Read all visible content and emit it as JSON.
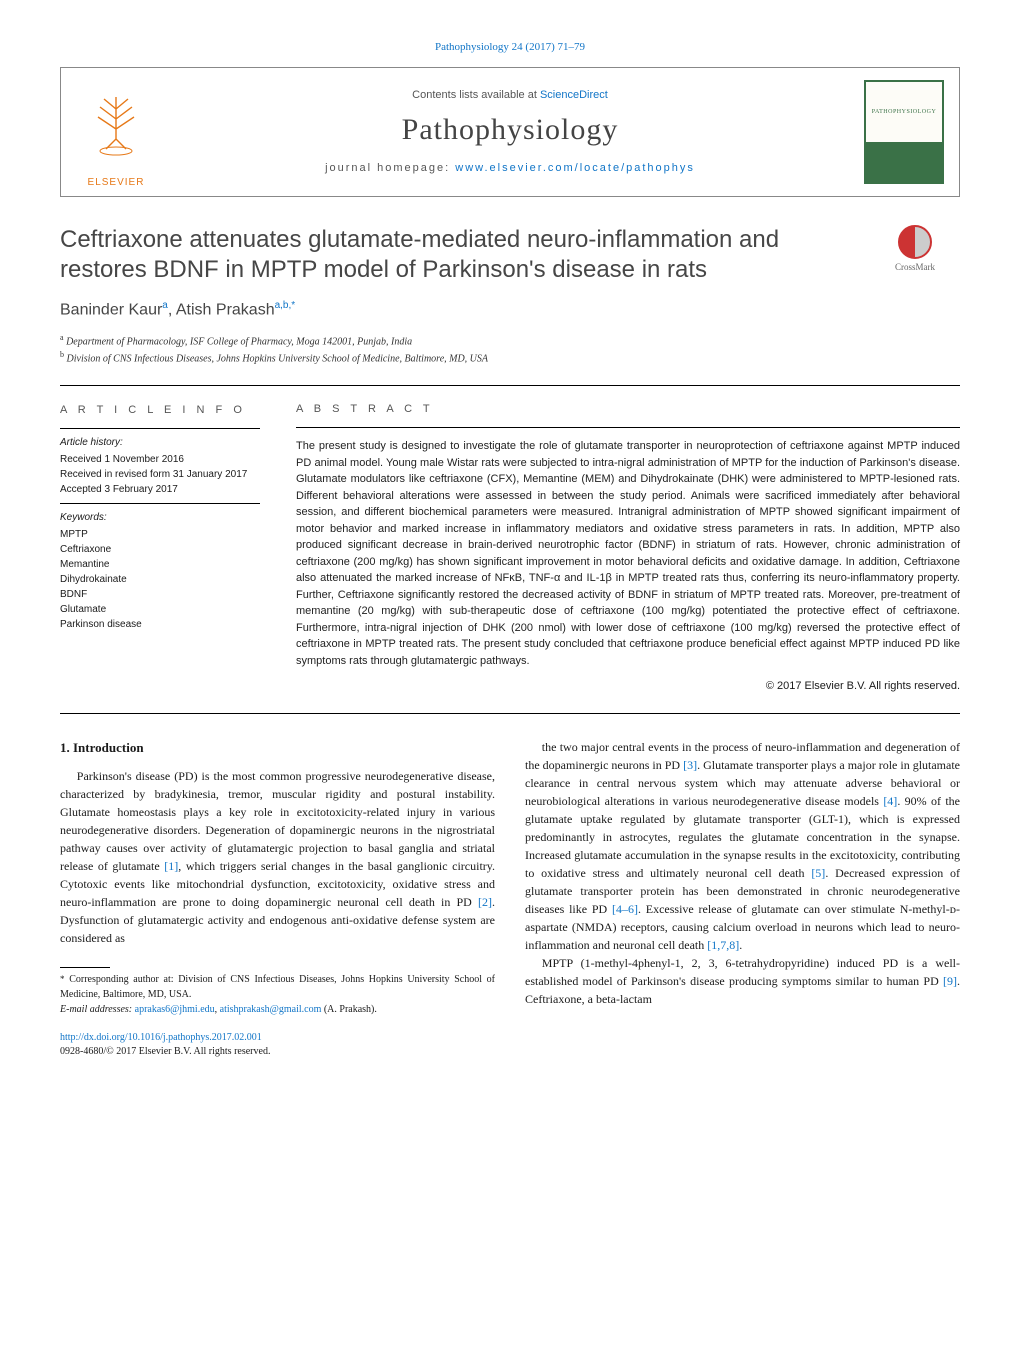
{
  "top_citation": "Pathophysiology 24 (2017) 71–79",
  "header": {
    "contents_prefix": "Contents lists available at ",
    "contents_link": "ScienceDirect",
    "journal_name": "Pathophysiology",
    "homepage_prefix": "journal homepage: ",
    "homepage_link": "www.elsevier.com/locate/pathophys",
    "publisher_logo_text": "ELSEVIER",
    "cover_text": "PATHOPHYSIOLOGY"
  },
  "crossmark_label": "CrossMark",
  "title": "Ceftriaxone attenuates glutamate-mediated neuro-inflammation and restores BDNF in MPTP model of Parkinson's disease in rats",
  "authors_html_parts": {
    "a1_name": "Baninder Kaur",
    "a1_sup": "a",
    "a2_name": "Atish Prakash",
    "a2_sup": "a,b,",
    "a2_star": "*"
  },
  "affiliations": [
    {
      "sup": "a",
      "text": "Department of Pharmacology, ISF College of Pharmacy, Moga 142001, Punjab, India"
    },
    {
      "sup": "b",
      "text": "Division of CNS Infectious Diseases, Johns Hopkins University School of Medicine, Baltimore, MD, USA"
    }
  ],
  "article_info": {
    "heading": "A R T I C L E   I N F O",
    "history_label": "Article history:",
    "history": [
      "Received 1 November 2016",
      "Received in revised form 31 January 2017",
      "Accepted 3 February 2017"
    ],
    "keywords_label": "Keywords:",
    "keywords": [
      "MPTP",
      "Ceftriaxone",
      "Memantine",
      "Dihydrokainate",
      "BDNF",
      "Glutamate",
      "Parkinson disease"
    ]
  },
  "abstract": {
    "heading": "A B S T R A C T",
    "text": "The present study is designed to investigate the role of glutamate transporter in neuroprotection of ceftriaxone against MPTP induced PD animal model. Young male Wistar rats were subjected to intra-nigral administration of MPTP for the induction of Parkinson's disease. Glutamate modulators like ceftriaxone (CFX), Memantine (MEM) and Dihydrokainate (DHK) were administered to MPTP-lesioned rats. Different behavioral alterations were assessed in between the study period. Animals were sacrificed immediately after behavioral session, and different biochemical parameters were measured. Intranigral administration of MPTP showed significant impairment of motor behavior and marked increase in inflammatory mediators and oxidative stress parameters in rats. In addition, MPTP also produced significant decrease in brain-derived neurotrophic factor (BDNF) in striatum of rats. However, chronic administration of ceftriaxone (200 mg/kg) has shown significant improvement in motor behavioral deficits and oxidative damage. In addition, Ceftriaxone also attenuated the marked increase of NFκB, TNF-α and IL-1β in MPTP treated rats thus, conferring its neuro-inflammatory property. Further, Ceftriaxone significantly restored the decreased activity of BDNF in striatum of MPTP treated rats. Moreover, pre-treatment of memantine (20 mg/kg) with sub-therapeutic dose of ceftriaxone (100 mg/kg) potentiated the protective effect of ceftriaxone. Furthermore, intra-nigral injection of DHK (200 nmol) with lower dose of ceftriaxone (100 mg/kg) reversed the protective effect of ceftriaxone in MPTP treated rats. The present study concluded that ceftriaxone produce beneficial effect against MPTP induced PD like symptoms rats through glutamatergic pathways.",
    "copyright": "© 2017 Elsevier B.V. All rights reserved."
  },
  "body": {
    "section_heading": "1. Introduction",
    "col1_p1": "Parkinson's disease (PD) is the most common progressive neurodegenerative disease, characterized by bradykinesia, tremor, muscular rigidity and postural instability. Glutamate homeostasis plays a key role in excitotoxicity-related injury in various neurodegenerative disorders. Degeneration of dopaminergic neurons in the nigrostriatal pathway causes over activity of glutamatergic projection to basal ganglia and striatal release of glutamate [1], which triggers serial changes in the basal ganglionic circuitry. Cytotoxic events like mitochondrial dysfunction, excitotoxicity, oxidative stress and neuro-inflammation are prone to doing dopaminergic neuronal cell death in PD [2]. Dysfunction of glutamatergic activity and endogenous anti-oxidative defense system are considered as",
    "col2_p1": "the two major central events in the process of neuro-inflammation and degeneration of the dopaminergic neurons in PD [3]. Glutamate transporter plays a major role in glutamate clearance in central nervous system which may attenuate adverse behavioral or neurobiological alterations in various neurodegenerative disease models [4]. 90% of the glutamate uptake regulated by glutamate transporter (GLT-1), which is expressed predominantly in astrocytes, regulates the glutamate concentration in the synapse. Increased glutamate accumulation in the synapse results in the excitotoxicity, contributing to oxidative stress and ultimately neuronal cell death [5]. Decreased expression of glutamate transporter protein has been demonstrated in chronic neurodegenerative diseases like PD [4–6]. Excessive release of glutamate can over stimulate N-methyl-ᴅ-aspartate (NMDA) receptors, causing calcium overload in neurons which lead to neuro-inflammation and neuronal cell death [1,7,8].",
    "col2_p2": "MPTP (1-methyl-4phenyl-1, 2, 3, 6-tetrahydropyridine) induced PD is a well-established model of Parkinson's disease producing symptoms similar to human PD [9]. Ceftriaxone, a beta-lactam"
  },
  "footnotes": {
    "corresp_star": "*",
    "corresp_text": "Corresponding author at: Division of CNS Infectious Diseases, Johns Hopkins University School of Medicine, Baltimore, MD, USA.",
    "email_label": "E-mail addresses:",
    "email1": "aprakas6@jhmi.edu",
    "email_sep": ", ",
    "email2": "atishprakash@gmail.com",
    "email_author": " (A. Prakash)."
  },
  "doi": {
    "link": "http://dx.doi.org/10.1016/j.pathophys.2017.02.001",
    "issn_line": "0928-4680/© 2017 Elsevier B.V. All rights reserved."
  },
  "refs": {
    "r1": "[1]",
    "r2": "[2]",
    "r3": "[3]",
    "r4": "[4]",
    "r5": "[5]",
    "r46": "[4–6]",
    "r178": "[1,7,8]",
    "r9": "[9]"
  },
  "colors": {
    "link": "#1175c7",
    "elsevier": "#e67817",
    "cover_green": "#3a7147",
    "text": "#1a1a1a",
    "heading_gray": "#464646"
  }
}
